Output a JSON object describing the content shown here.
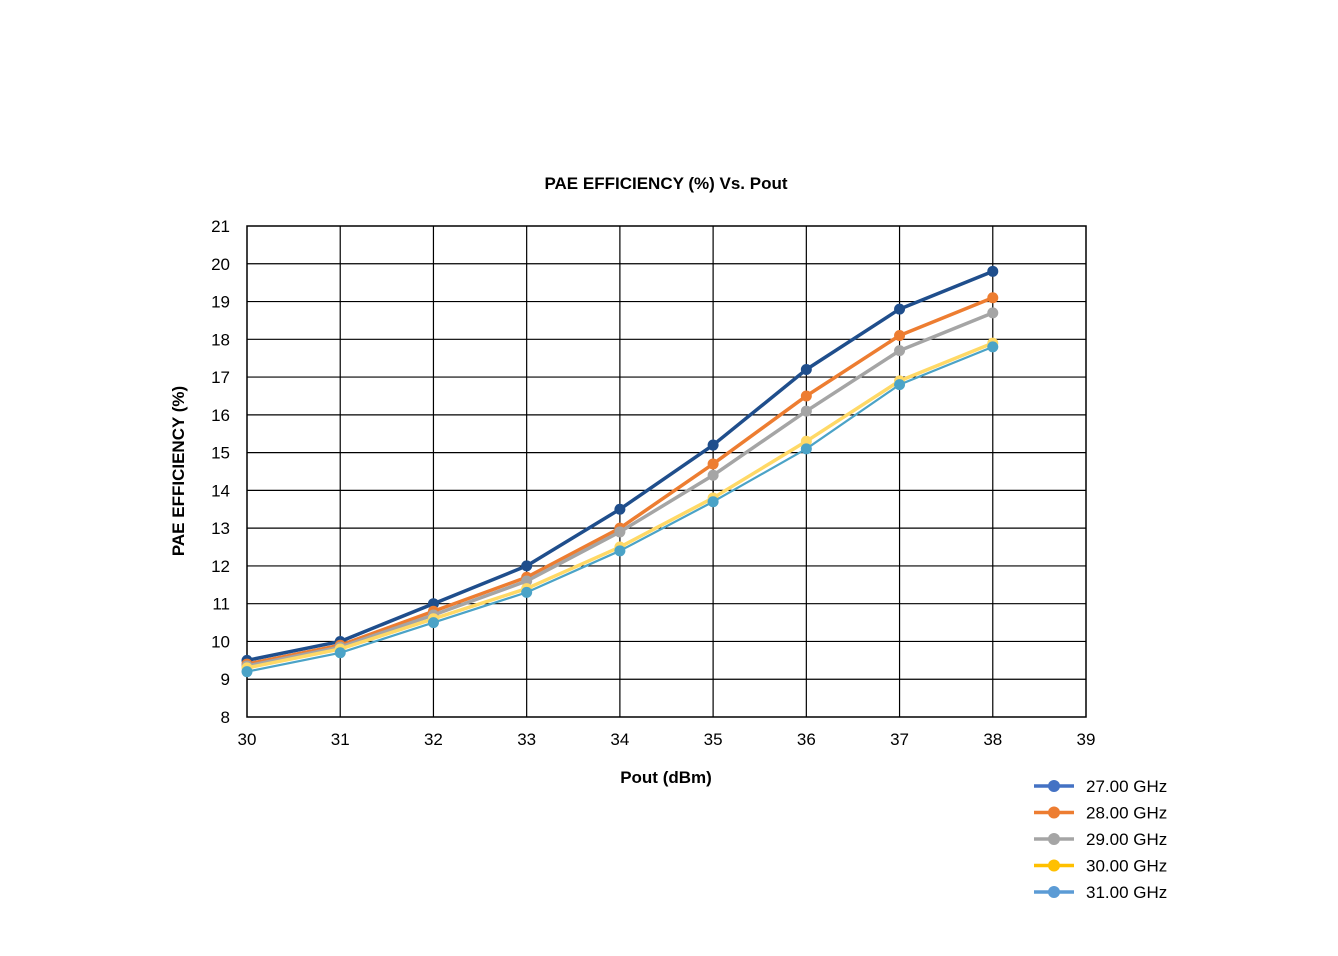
{
  "chart_data": {
    "type": "line",
    "title": "PAE EFFICIENCY (%) Vs. Pout",
    "xlabel": "Pout (dBm)",
    "ylabel": "PAE EFFICIENCY (%)",
    "xlim": [
      30,
      39
    ],
    "ylim": [
      8,
      21
    ],
    "xticks": [
      "30",
      "31",
      "32",
      "33",
      "34",
      "35",
      "36",
      "37",
      "38",
      "39"
    ],
    "yticks": [
      "8",
      "9",
      "10",
      "11",
      "12",
      "13",
      "14",
      "15",
      "16",
      "17",
      "18",
      "19",
      "20",
      "21"
    ],
    "grid": true,
    "legend_position": "bottom-right",
    "x": [
      30,
      31,
      32,
      33,
      34,
      35,
      36,
      37,
      38
    ],
    "series": [
      {
        "name": "27.00 GHz",
        "color": "#1f4e8c",
        "legend_color": "#4472c4",
        "values": [
          9.5,
          10.0,
          11.0,
          12.0,
          13.5,
          15.2,
          17.2,
          18.8,
          19.8
        ]
      },
      {
        "name": "28.00 GHz",
        "color": "#ed7d31",
        "legend_color": "#ed7d31",
        "values": [
          9.4,
          9.9,
          10.8,
          11.7,
          13.0,
          14.7,
          16.5,
          18.1,
          19.1
        ]
      },
      {
        "name": "29.00 GHz",
        "color": "#a5a5a5",
        "legend_color": "#a5a5a5",
        "values": [
          9.35,
          9.85,
          10.7,
          11.6,
          12.9,
          14.4,
          16.1,
          17.7,
          18.7
        ]
      },
      {
        "name": "30.00 GHz",
        "color": "#ffd966",
        "legend_color": "#ffc000",
        "values": [
          9.3,
          9.8,
          10.6,
          11.4,
          12.5,
          13.8,
          15.3,
          16.9,
          17.9
        ]
      },
      {
        "name": "31.00 GHz",
        "color": "#4ba3c7",
        "legend_color": "#5b9bd5",
        "values": [
          9.2,
          9.7,
          10.5,
          11.3,
          12.4,
          13.7,
          15.1,
          16.8,
          17.8
        ]
      }
    ]
  }
}
